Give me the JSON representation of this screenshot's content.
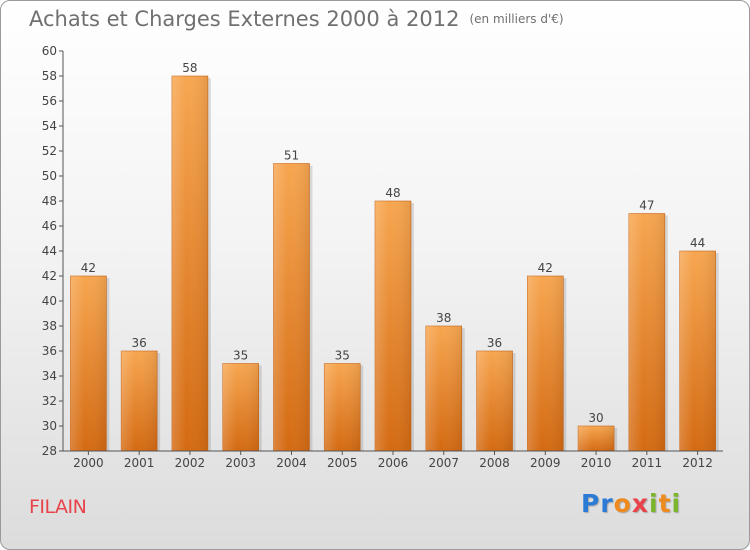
{
  "title": "Achats et Charges Externes 2000 à 2012",
  "unit": "(en milliers d'€)",
  "town": "FILAIN",
  "logo": {
    "letters": [
      "P",
      "r",
      "o",
      "x",
      "i",
      "t",
      "i"
    ],
    "colors": [
      "#2b7bd6",
      "#2b7bd6",
      "#ef8a1e",
      "#e8434b",
      "#7bb52b",
      "#ef8a1e",
      "#7bb52b"
    ]
  },
  "chart_data": {
    "type": "bar",
    "categories": [
      "2000",
      "2001",
      "2002",
      "2003",
      "2004",
      "2005",
      "2006",
      "2007",
      "2008",
      "2009",
      "2010",
      "2011",
      "2012"
    ],
    "values": [
      42,
      36,
      58,
      35,
      51,
      35,
      48,
      38,
      36,
      42,
      30,
      47,
      44
    ],
    "ylim": [
      28,
      60
    ],
    "yticks": [
      28,
      30,
      32,
      34,
      36,
      38,
      40,
      42,
      44,
      46,
      48,
      50,
      52,
      54,
      56,
      58,
      60
    ],
    "grid": false,
    "bar_color": "#f0943a"
  }
}
